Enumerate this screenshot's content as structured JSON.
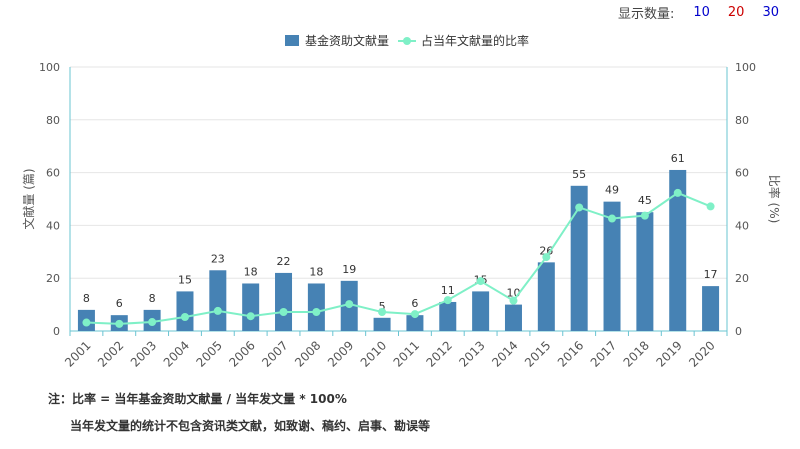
{
  "toolbar": {
    "label": "显示数量:",
    "options": [
      {
        "value": "10",
        "color": "#0000cc"
      },
      {
        "value": "20",
        "color": "#cc0000"
      },
      {
        "value": "30",
        "color": "#0000cc"
      }
    ]
  },
  "colors": {
    "bar": "#4682b4",
    "line": "#7ff0c7",
    "axis": "#6ac4d2",
    "grid": "#e6e6e6"
  },
  "notes": {
    "line1": "注：比率 = 当年基金资助文献量 / 当年发文量 * 100%",
    "line2": "当年发文量的统计不包含资讯类文献，如致谢、稿约、启事、勘误等"
  },
  "chart_data": {
    "type": "bar",
    "categories": [
      "2001",
      "2002",
      "2003",
      "2004",
      "2005",
      "2006",
      "2007",
      "2008",
      "2009",
      "2010",
      "2011",
      "2012",
      "2013",
      "2014",
      "2015",
      "2016",
      "2017",
      "2018",
      "2019",
      "2020"
    ],
    "series": [
      {
        "name": "基金资助文献量",
        "type": "bar",
        "axis": "left",
        "values": [
          8,
          6,
          8,
          15,
          23,
          18,
          22,
          18,
          19,
          5,
          6,
          11,
          15,
          10,
          26,
          55,
          49,
          45,
          61,
          17
        ]
      },
      {
        "name": "占当年文献量的比率",
        "type": "line",
        "axis": "right",
        "values": [
          3.2,
          2.7,
          3.4,
          5.3,
          7.6,
          5.6,
          7.2,
          7.2,
          10.2,
          7.2,
          6.4,
          11.7,
          18.9,
          11.5,
          28,
          46.8,
          42.6,
          43.7,
          52.3,
          47.2
        ]
      }
    ],
    "ylabel": "文献量 (篇)",
    "y2label": "比率 (%)",
    "ylim": [
      0,
      100
    ],
    "y2lim": [
      0,
      100
    ],
    "yticks": [
      0,
      20,
      40,
      60,
      80,
      100
    ],
    "y2ticks": [
      0,
      20,
      40,
      60,
      80,
      100
    ],
    "grid": true,
    "legend_position": "top-center"
  }
}
